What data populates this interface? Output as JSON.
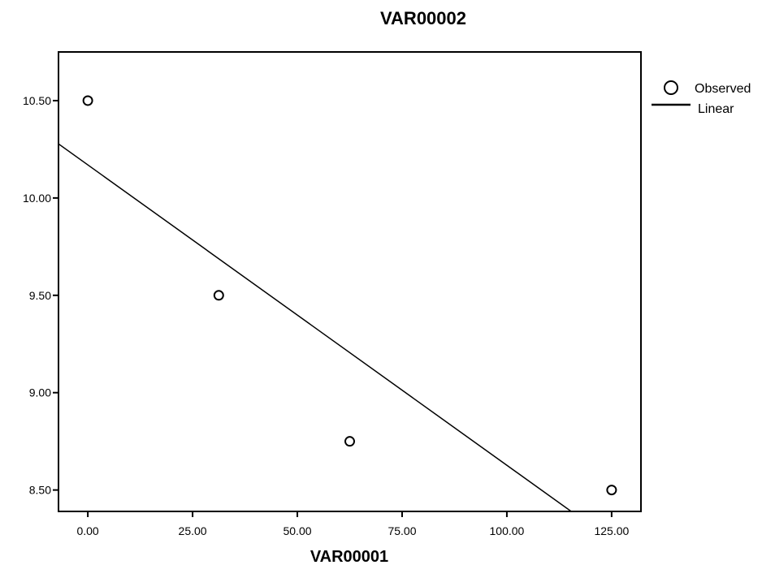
{
  "chart_data": {
    "type": "scatter",
    "title": "VAR00002",
    "xlabel": "VAR00001",
    "ylabel": "",
    "xlim": [
      -7,
      132
    ],
    "ylim": [
      8.39,
      10.75
    ],
    "x_ticks": [
      0,
      25,
      50,
      75,
      100,
      125
    ],
    "x_tick_labels": [
      "0.00",
      "25.00",
      "50.00",
      "75.00",
      "100.00",
      "125.00"
    ],
    "y_ticks": [
      8.5,
      9.0,
      9.5,
      10.0,
      10.5
    ],
    "y_tick_labels": [
      "8.50",
      "9.00",
      "9.50",
      "10.00",
      "10.50"
    ],
    "grid": false,
    "legend_position": "right",
    "series": [
      {
        "name": "Observed",
        "type": "scatter",
        "marker": "open-circle",
        "x": [
          0,
          31.25,
          62.5,
          125
        ],
        "y": [
          10.5,
          9.5,
          8.75,
          8.5
        ]
      },
      {
        "name": "Linear",
        "type": "line",
        "intercept": 10.17,
        "slope": -0.01543
      }
    ],
    "colors": {
      "ink": "#000000",
      "background": "#ffffff"
    }
  }
}
